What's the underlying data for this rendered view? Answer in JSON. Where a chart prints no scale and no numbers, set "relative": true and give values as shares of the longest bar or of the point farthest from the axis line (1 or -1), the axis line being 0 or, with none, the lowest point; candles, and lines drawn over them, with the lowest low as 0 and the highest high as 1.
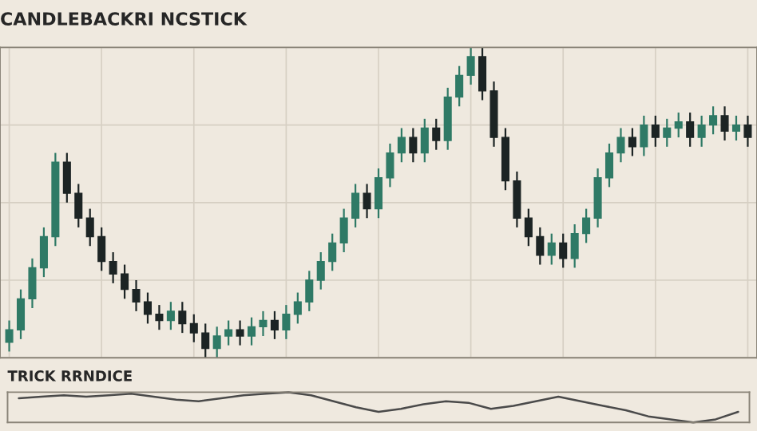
{
  "chart_data": [
    {
      "type": "candlestick",
      "title": "CANDLEBACKRI NCSTICK",
      "relative": true,
      "grid": true,
      "categories": [
        null,
        null,
        null,
        null,
        null,
        null,
        null,
        null,
        null,
        null,
        null,
        null,
        null,
        null,
        null,
        null,
        null,
        null,
        null,
        null,
        null,
        null,
        null,
        null,
        null,
        null,
        null,
        null,
        null,
        null,
        null,
        null,
        null,
        null,
        null,
        null,
        null,
        null,
        null,
        null,
        null,
        null,
        null,
        null,
        null,
        null,
        null,
        null,
        null,
        null,
        null,
        null,
        null,
        null,
        null,
        null,
        null,
        null,
        null,
        null,
        null,
        null,
        null,
        null,
        null
      ],
      "colors": [
        "#2f7a66",
        "#2f7a66",
        "#2f7a66",
        "#2f7a66",
        "#2f7a66",
        "#1c2424",
        "#1c2424",
        "#1c2424",
        "#1c2424",
        "#1c2424",
        "#1c2424",
        "#1c2424",
        "#1c2424",
        "#1c2424",
        "#2f7a66",
        "#1c2424",
        "#1c2424",
        "#1c2424",
        "#2f7a66",
        "#2f7a66",
        "#1c2424",
        "#2f7a66",
        "#2f7a66",
        "#1c2424",
        "#2f7a66",
        "#2f7a66",
        "#2f7a66",
        "#2f7a66",
        "#2f7a66",
        "#2f7a66",
        "#2f7a66",
        "#1c2424",
        "#2f7a66",
        "#2f7a66",
        "#2f7a66",
        "#1c2424",
        "#2f7a66",
        "#1c2424",
        "#2f7a66",
        "#2f7a66",
        "#2f7a66",
        "#1c2424",
        "#1c2424",
        "#1c2424",
        "#1c2424",
        "#1c2424",
        "#1c2424",
        "#2f7a66",
        "#1c2424",
        "#2f7a66",
        "#2f7a66",
        "#2f7a66",
        "#2f7a66",
        "#2f7a66",
        "#1c2424",
        "#2f7a66",
        "#1c2424",
        "#2f7a66",
        "#2f7a66",
        "#1c2424",
        "#2f7a66",
        "#2f7a66",
        "#1c2424",
        "#2f7a66",
        "#1c2424"
      ],
      "ohlc": [
        [
          0.05,
          0.12,
          0.02,
          0.09
        ],
        [
          0.09,
          0.22,
          0.06,
          0.19
        ],
        [
          0.19,
          0.32,
          0.16,
          0.29
        ],
        [
          0.29,
          0.42,
          0.26,
          0.39
        ],
        [
          0.39,
          0.66,
          0.36,
          0.63
        ],
        [
          0.63,
          0.66,
          0.5,
          0.53
        ],
        [
          0.53,
          0.56,
          0.42,
          0.45
        ],
        [
          0.45,
          0.48,
          0.36,
          0.39
        ],
        [
          0.39,
          0.42,
          0.28,
          0.31
        ],
        [
          0.31,
          0.34,
          0.24,
          0.27
        ],
        [
          0.27,
          0.3,
          0.19,
          0.22
        ],
        [
          0.22,
          0.25,
          0.15,
          0.18
        ],
        [
          0.18,
          0.21,
          0.11,
          0.14
        ],
        [
          0.14,
          0.17,
          0.09,
          0.12
        ],
        [
          0.12,
          0.18,
          0.09,
          0.15
        ],
        [
          0.15,
          0.18,
          0.08,
          0.11
        ],
        [
          0.11,
          0.14,
          0.05,
          0.08
        ],
        [
          0.08,
          0.11,
          0,
          0.03
        ],
        [
          0.03,
          0.1,
          0,
          0.07
        ],
        [
          0.07,
          0.12,
          0.04,
          0.09
        ],
        [
          0.09,
          0.12,
          0.04,
          0.07
        ],
        [
          0.07,
          0.13,
          0.04,
          0.1
        ],
        [
          0.1,
          0.15,
          0.07,
          0.12
        ],
        [
          0.12,
          0.15,
          0.06,
          0.09
        ],
        [
          0.09,
          0.17,
          0.06,
          0.14
        ],
        [
          0.14,
          0.21,
          0.11,
          0.18
        ],
        [
          0.18,
          0.28,
          0.15,
          0.25
        ],
        [
          0.25,
          0.34,
          0.22,
          0.31
        ],
        [
          0.31,
          0.4,
          0.28,
          0.37
        ],
        [
          0.37,
          0.48,
          0.34,
          0.45
        ],
        [
          0.45,
          0.56,
          0.42,
          0.53
        ],
        [
          0.53,
          0.56,
          0.45,
          0.48
        ],
        [
          0.48,
          0.61,
          0.45,
          0.58
        ],
        [
          0.58,
          0.69,
          0.55,
          0.66
        ],
        [
          0.66,
          0.74,
          0.63,
          0.71
        ],
        [
          0.71,
          0.74,
          0.63,
          0.66
        ],
        [
          0.66,
          0.77,
          0.63,
          0.74
        ],
        [
          0.74,
          0.77,
          0.67,
          0.7
        ],
        [
          0.7,
          0.87,
          0.67,
          0.84
        ],
        [
          0.84,
          0.94,
          0.81,
          0.91
        ],
        [
          0.91,
          1,
          0.88,
          0.97
        ],
        [
          0.97,
          1,
          0.83,
          0.86
        ],
        [
          0.86,
          0.89,
          0.68,
          0.71
        ],
        [
          0.71,
          0.74,
          0.54,
          0.57
        ],
        [
          0.57,
          0.6,
          0.42,
          0.45
        ],
        [
          0.45,
          0.48,
          0.36,
          0.39
        ],
        [
          0.39,
          0.42,
          0.3,
          0.33
        ],
        [
          0.33,
          0.4,
          0.3,
          0.37
        ],
        [
          0.37,
          0.4,
          0.29,
          0.32
        ],
        [
          0.32,
          0.43,
          0.29,
          0.4
        ],
        [
          0.4,
          0.48,
          0.37,
          0.45
        ],
        [
          0.45,
          0.61,
          0.42,
          0.58
        ],
        [
          0.58,
          0.69,
          0.55,
          0.66
        ],
        [
          0.66,
          0.74,
          0.63,
          0.71
        ],
        [
          0.71,
          0.74,
          0.65,
          0.68
        ],
        [
          0.68,
          0.78,
          0.65,
          0.75
        ],
        [
          0.75,
          0.78,
          0.68,
          0.71
        ],
        [
          0.71,
          0.77,
          0.68,
          0.74
        ],
        [
          0.74,
          0.79,
          0.71,
          0.76
        ],
        [
          0.76,
          0.79,
          0.68,
          0.71
        ],
        [
          0.71,
          0.78,
          0.68,
          0.75
        ],
        [
          0.75,
          0.81,
          0.72,
          0.78
        ],
        [
          0.78,
          0.81,
          0.7,
          0.73
        ],
        [
          0.73,
          0.78,
          0.7,
          0.75
        ],
        [
          0.75,
          0.78,
          0.68,
          0.71
        ]
      ]
    },
    {
      "type": "line",
      "title": "TRICK RRNDICE",
      "relative": true,
      "categories": [
        null,
        null,
        null,
        null,
        null,
        null,
        null,
        null,
        null,
        null,
        null,
        null,
        null,
        null,
        null,
        null,
        null,
        null,
        null,
        null,
        null,
        null,
        null,
        null,
        null,
        null,
        null,
        null,
        null,
        null,
        null,
        null,
        null
      ],
      "series": [
        {
          "color": "#4a4a4a",
          "values": [
            0.8,
            0.85,
            0.9,
            0.85,
            0.9,
            0.95,
            0.85,
            0.75,
            0.7,
            0.8,
            0.9,
            0.95,
            1,
            0.9,
            0.7,
            0.5,
            0.35,
            0.45,
            0.6,
            0.7,
            0.65,
            0.45,
            0.55,
            0.7,
            0.85,
            0.7,
            0.55,
            0.4,
            0.2,
            0.1,
            0,
            0.1,
            0.35
          ]
        }
      ]
    }
  ]
}
